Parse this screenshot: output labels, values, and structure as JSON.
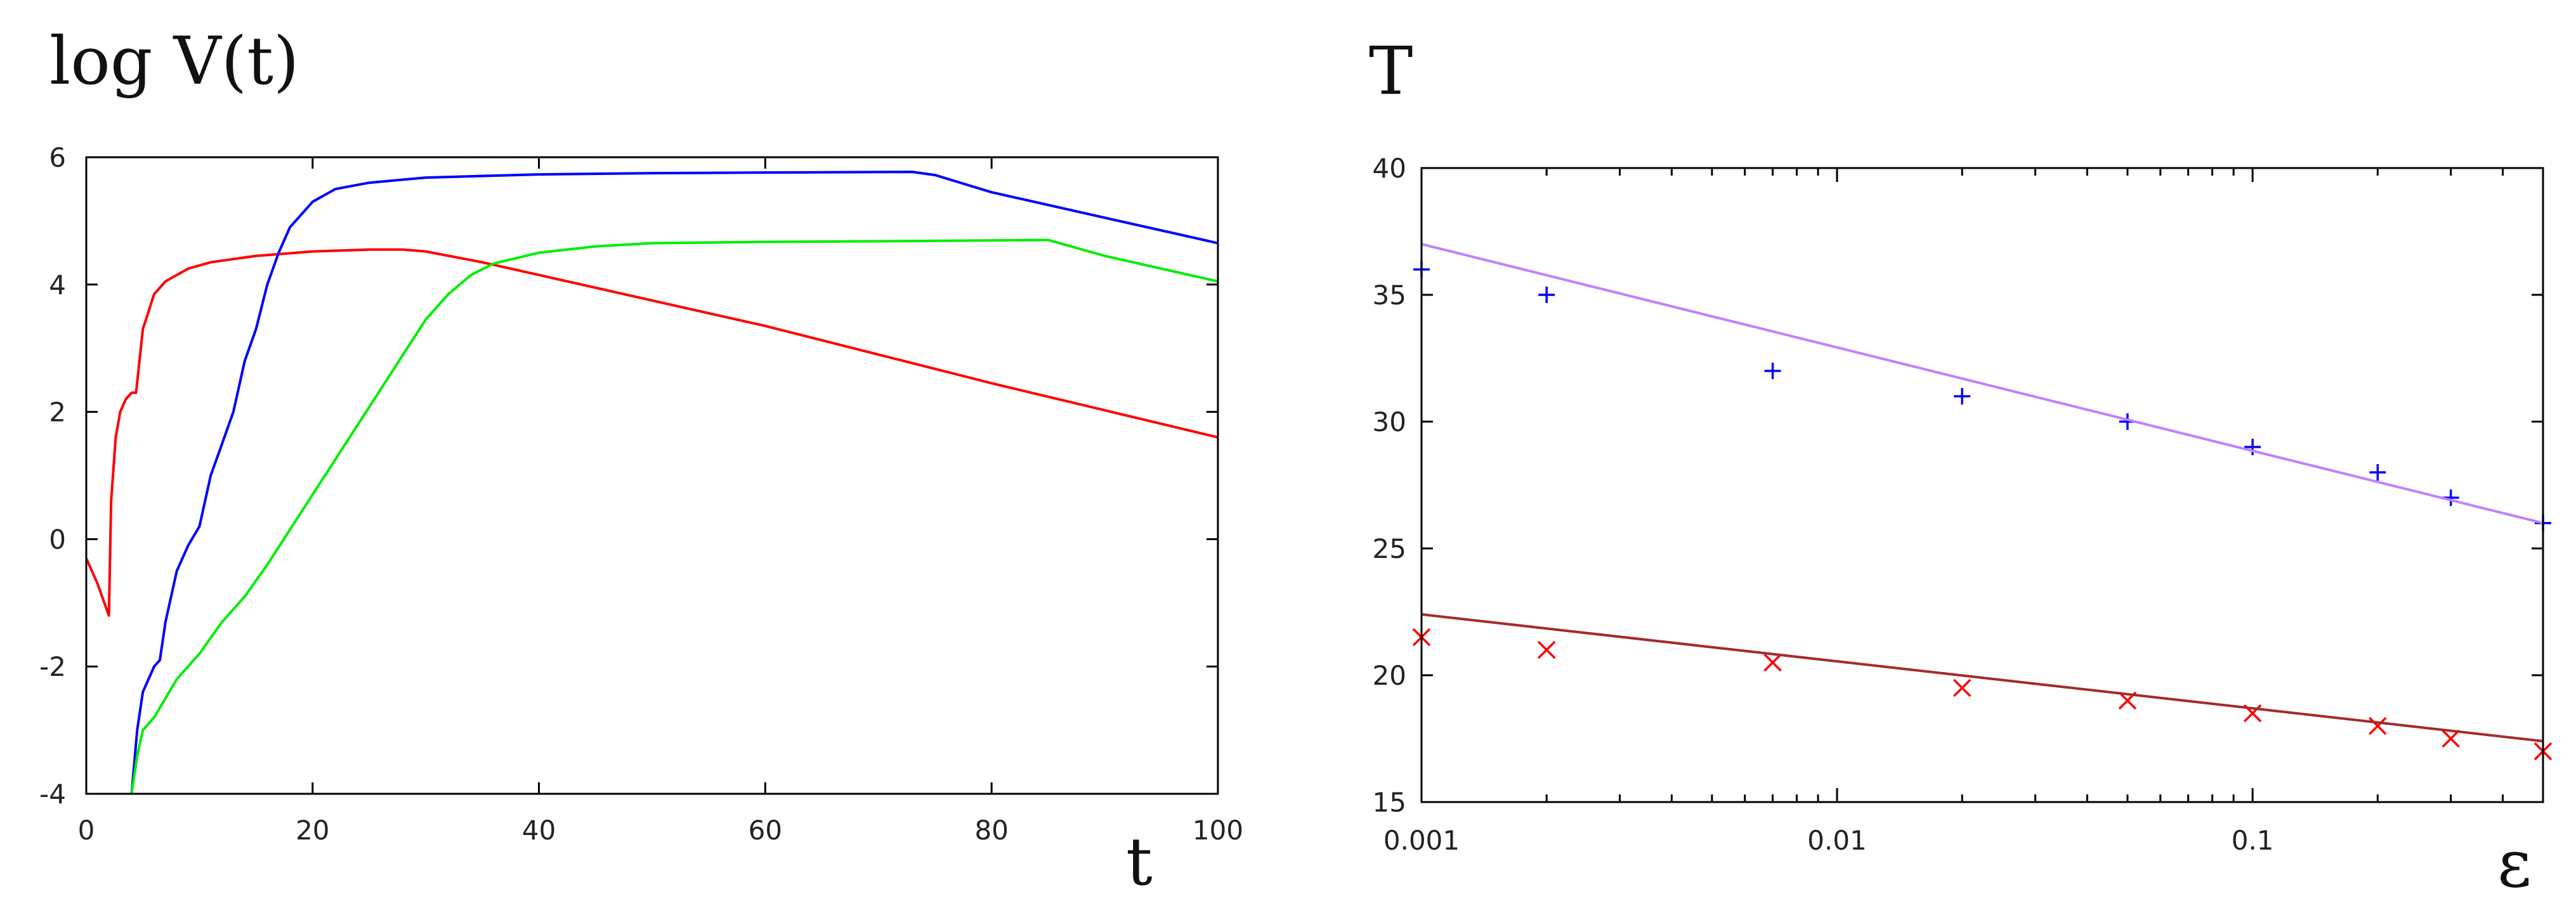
{
  "chart_data": [
    {
      "type": "line",
      "title": "log V(t)",
      "xlabel": "t",
      "ylabel": "log V(t)",
      "xlim": [
        0,
        100
      ],
      "ylim": [
        -4,
        6
      ],
      "xticks": [
        "0",
        "20",
        "40",
        "60",
        "80",
        "100"
      ],
      "yticks": [
        "-4",
        "-2",
        "0",
        "2",
        "4",
        "6"
      ],
      "series": [
        {
          "name": "red",
          "color": "#ff0000",
          "points": [
            [
              0,
              -0.3
            ],
            [
              1,
              -0.7
            ],
            [
              2,
              -1.2
            ],
            [
              2.2,
              0.6
            ],
            [
              2.6,
              1.6
            ],
            [
              3,
              2.0
            ],
            [
              3.5,
              2.2
            ],
            [
              4,
              2.3
            ],
            [
              4.4,
              2.3
            ],
            [
              5,
              3.3
            ],
            [
              6,
              3.85
            ],
            [
              7,
              4.05
            ],
            [
              9,
              4.25
            ],
            [
              11,
              4.35
            ],
            [
              15,
              4.45
            ],
            [
              20,
              4.52
            ],
            [
              25,
              4.55
            ],
            [
              28,
              4.55
            ],
            [
              30,
              4.52
            ],
            [
              35,
              4.35
            ],
            [
              40,
              4.15
            ],
            [
              60,
              3.35
            ],
            [
              80,
              2.45
            ],
            [
              100,
              1.6
            ]
          ]
        },
        {
          "name": "blue",
          "color": "#0000ff",
          "points": [
            [
              4,
              -4
            ],
            [
              4.5,
              -3
            ],
            [
              5,
              -2.4
            ],
            [
              6,
              -2.0
            ],
            [
              6.5,
              -1.9
            ],
            [
              7,
              -1.3
            ],
            [
              8,
              -0.5
            ],
            [
              9,
              -0.1
            ],
            [
              10,
              0.2
            ],
            [
              11,
              1.0
            ],
            [
              12,
              1.5
            ],
            [
              13,
              2.0
            ],
            [
              14,
              2.8
            ],
            [
              15,
              3.3
            ],
            [
              16,
              4.0
            ],
            [
              17,
              4.5
            ],
            [
              18,
              4.9
            ],
            [
              20,
              5.3
            ],
            [
              22,
              5.5
            ],
            [
              25,
              5.6
            ],
            [
              30,
              5.68
            ],
            [
              40,
              5.73
            ],
            [
              50,
              5.75
            ],
            [
              60,
              5.76
            ],
            [
              73,
              5.77
            ],
            [
              75,
              5.72
            ],
            [
              80,
              5.45
            ],
            [
              90,
              5.05
            ],
            [
              100,
              4.65
            ]
          ]
        },
        {
          "name": "green",
          "color": "#00ee00",
          "points": [
            [
              4,
              -4
            ],
            [
              4.5,
              -3.4
            ],
            [
              5,
              -3.0
            ],
            [
              6,
              -2.8
            ],
            [
              7,
              -2.5
            ],
            [
              8,
              -2.2
            ],
            [
              10,
              -1.8
            ],
            [
              12,
              -1.3
            ],
            [
              14,
              -0.9
            ],
            [
              16,
              -0.4
            ],
            [
              20,
              0.7
            ],
            [
              24,
              1.8
            ],
            [
              28,
              2.9
            ],
            [
              30,
              3.45
            ],
            [
              32,
              3.85
            ],
            [
              34,
              4.15
            ],
            [
              36,
              4.33
            ],
            [
              40,
              4.5
            ],
            [
              45,
              4.6
            ],
            [
              50,
              4.65
            ],
            [
              60,
              4.67
            ],
            [
              70,
              4.68
            ],
            [
              85,
              4.7
            ],
            [
              90,
              4.45
            ],
            [
              100,
              4.05
            ]
          ]
        }
      ]
    },
    {
      "type": "scatter",
      "title": "T",
      "xlabel": "ε",
      "ylabel": "T",
      "xscale": "log",
      "xlim": [
        0.001,
        0.5
      ],
      "ylim": [
        15,
        40
      ],
      "xticks": [
        "0.001",
        "0.01",
        "0.1"
      ],
      "yticks": [
        "15",
        "20",
        "25",
        "30",
        "35",
        "40"
      ],
      "series": [
        {
          "name": "plus-points",
          "marker": "+",
          "color": "#0000ff",
          "x": [
            0.001,
            0.002,
            0.007,
            0.02,
            0.05,
            0.1,
            0.2,
            0.3,
            0.5
          ],
          "y": [
            36,
            35,
            32,
            31,
            30,
            29,
            28,
            27,
            26
          ]
        },
        {
          "name": "plus-fit",
          "type": "line",
          "color": "#c080ff",
          "x": [
            0.001,
            0.5
          ],
          "y": [
            37,
            26
          ]
        },
        {
          "name": "cross-points",
          "marker": "x",
          "color": "#ff0000",
          "x": [
            0.001,
            0.002,
            0.007,
            0.02,
            0.05,
            0.1,
            0.2,
            0.3,
            0.5
          ],
          "y": [
            21.5,
            21,
            20.5,
            19.5,
            19,
            18.5,
            18,
            17.5,
            17
          ]
        },
        {
          "name": "cross-fit",
          "type": "line",
          "color": "#a52a2a",
          "x": [
            0.001,
            0.5
          ],
          "y": [
            22.4,
            17.4
          ]
        }
      ]
    }
  ]
}
